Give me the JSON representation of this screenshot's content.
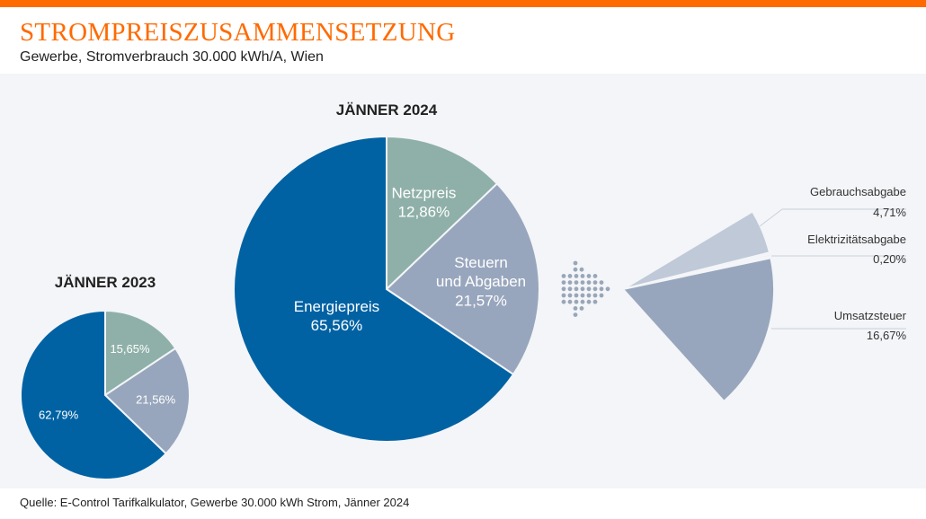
{
  "header": {
    "title": "STROMPREISZUSAMMENSETZUNG",
    "subtitle": "Gewerbe, Stromverbrauch 30.000 kWh/A, Wien"
  },
  "source": "Quelle: E-Control Tarifkalkulator, Gewerbe 30.000 kWh Strom, Jänner 2024",
  "colors": {
    "accent": "#ff6a00",
    "energiepreis": "#0062a3",
    "netzpreis": "#8fb0a8",
    "steuern": "#98a6bd",
    "gebrauchsabgabe": "#c0c9d8",
    "elektrizitaetsabgabe": "#c0c9d8",
    "umsatzsteuer": "#98a6bd"
  },
  "chart_data": [
    {
      "type": "pie",
      "title": "JÄNNER 2023",
      "slices": [
        {
          "label": "15,65%",
          "value": 15.65
        },
        {
          "label": "21,56%",
          "value": 21.56
        },
        {
          "label": "62,79%",
          "value": 62.79
        }
      ]
    },
    {
      "type": "pie",
      "title": "JÄNNER 2024",
      "slices": [
        {
          "name": "Netzpreis",
          "label": "12,86%",
          "value": 12.86
        },
        {
          "name": "Steuern und Abgaben",
          "label": "21,57%",
          "value": 21.57
        },
        {
          "name": "Energiepreis",
          "label": "65,56%",
          "value": 65.56
        }
      ]
    },
    {
      "type": "pie",
      "title": "",
      "slices": [
        {
          "name": "Gebrauchsabgabe",
          "label": "4,71%",
          "value": 4.71
        },
        {
          "name": "Elektrizitätsabgabe",
          "label": "0,20%",
          "value": 0.2
        },
        {
          "name": "Umsatzsteuer",
          "label": "16,67%",
          "value": 16.67
        }
      ]
    }
  ]
}
